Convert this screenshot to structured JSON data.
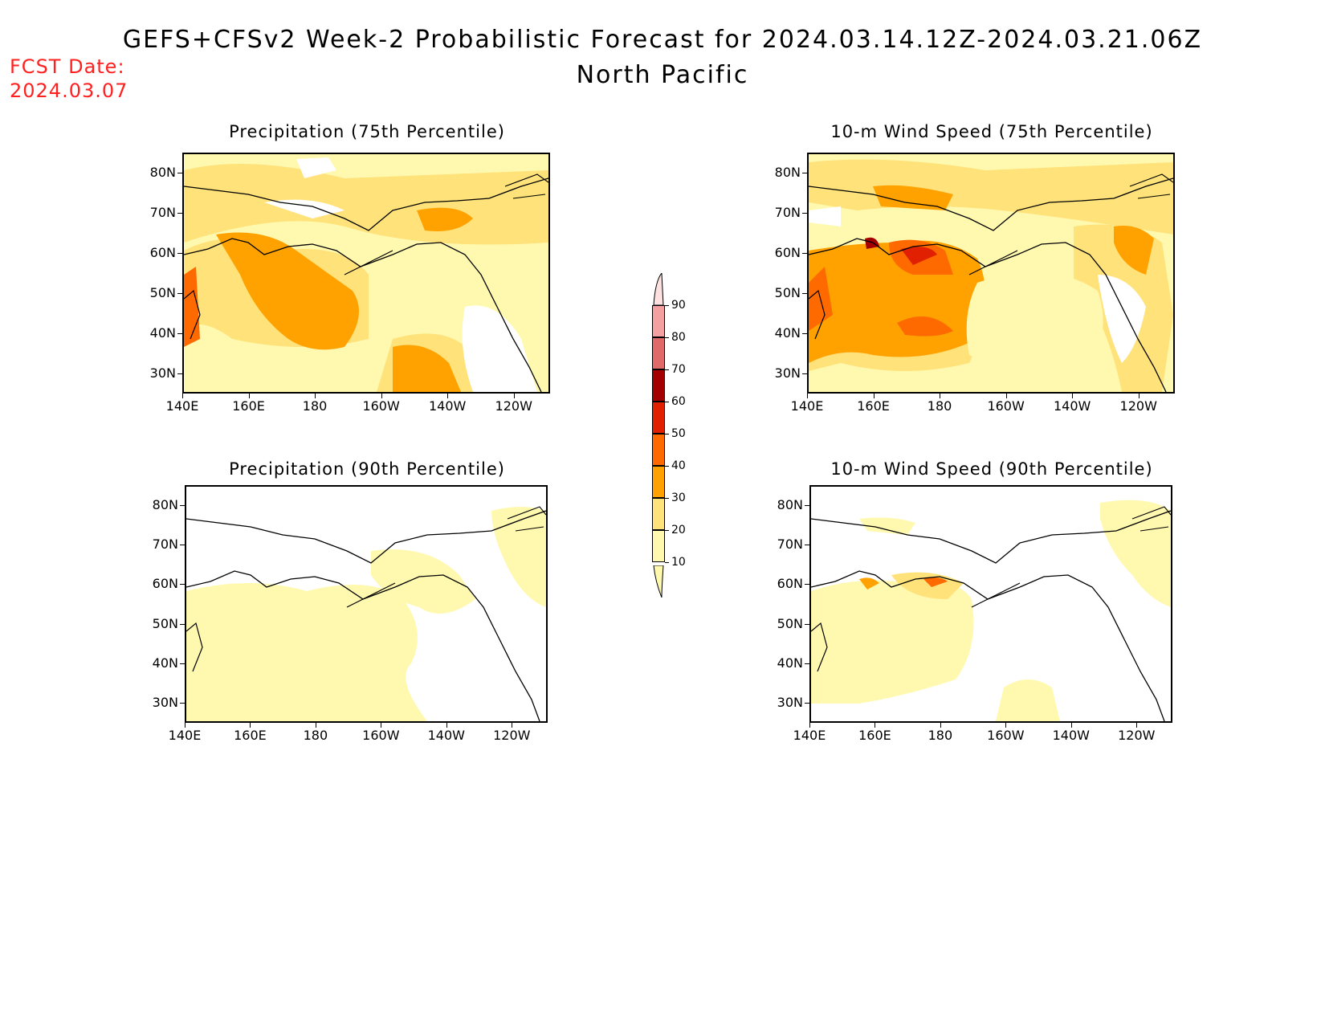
{
  "header": {
    "title": "GEFS+CFSv2 Week-2 Probabilistic Forecast for 2024.03.14.12Z-2024.03.21.06Z",
    "subtitle": "North Pacific",
    "fcst_label": "FCST Date:",
    "fcst_date": "2024.03.07"
  },
  "axes": {
    "lat_labels": [
      "80N",
      "70N",
      "60N",
      "50N",
      "40N",
      "30N"
    ],
    "lon_labels": [
      "140E",
      "160E",
      "180",
      "160W",
      "140W",
      "120W"
    ]
  },
  "panels": [
    {
      "title": "Precipitation (75th Percentile)"
    },
    {
      "title": "10-m Wind Speed (75th Percentile)"
    },
    {
      "title": "Precipitation (90th Percentile)"
    },
    {
      "title": "10-m Wind Speed (90th Percentile)"
    }
  ],
  "colorbar": {
    "levels": [
      "90",
      "80",
      "70",
      "60",
      "50",
      "40",
      "30",
      "20",
      "10"
    ],
    "colors": {
      "10-20": "#fff9b0",
      "20-30": "#ffe27a",
      "30-40": "#ffa200",
      "40-50": "#ff6a00",
      "50-60": "#e02000",
      "60-70": "#a50000",
      "70-80": "#e06a6a",
      "80-90": "#f5a0a0",
      "90+": "#fde0e0"
    }
  }
}
